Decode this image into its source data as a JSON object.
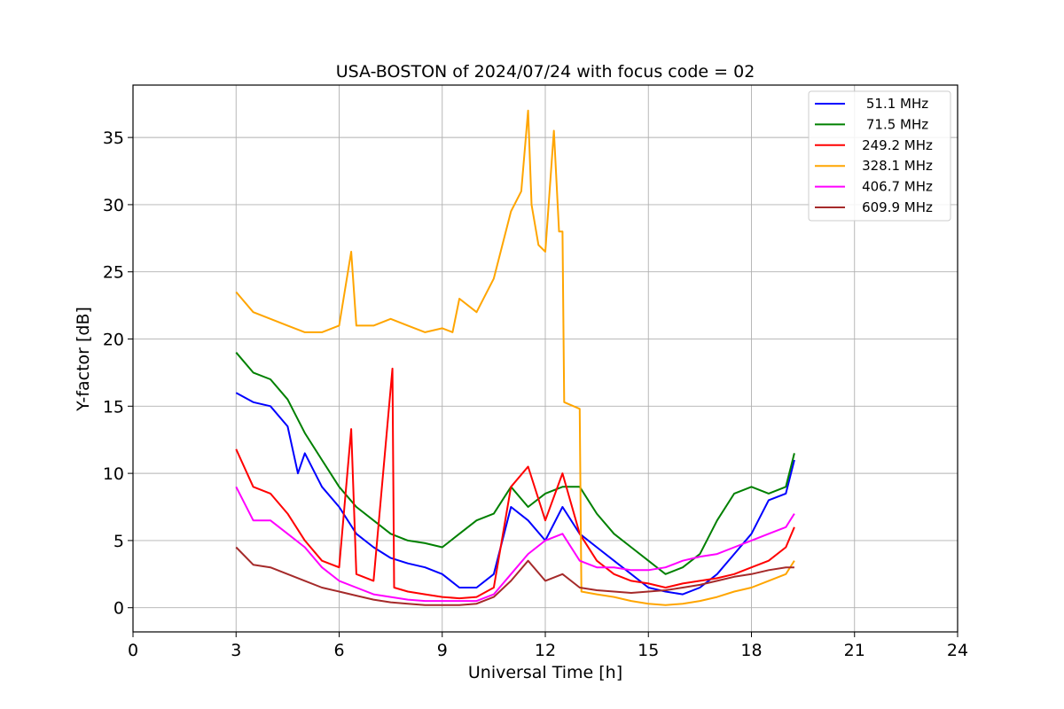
{
  "chart_data": {
    "type": "line",
    "title": "USA-BOSTON of 2024/07/24 with focus code = 02",
    "xlabel": "Universal Time [h]",
    "ylabel": "Y-factor [dB]",
    "xlim": [
      0,
      24
    ],
    "ylim": [
      -1.8,
      38.9
    ],
    "xticks": [
      "0",
      "3",
      "6",
      "9",
      "12",
      "15",
      "18",
      "21",
      "24"
    ],
    "yticks": [
      "0",
      "5",
      "10",
      "15",
      "20",
      "25",
      "30",
      "35"
    ],
    "grid": true,
    "legend_position": "top-right",
    "series": [
      {
        "name": "51.1 MHz",
        "color": "#0000ff",
        "x": [
          3.0,
          3.5,
          4.0,
          4.5,
          4.8,
          5.0,
          5.5,
          6.0,
          6.5,
          7.0,
          7.5,
          8.0,
          8.5,
          9.0,
          9.5,
          10.0,
          10.5,
          11.0,
          11.5,
          12.0,
          12.5,
          13.0,
          13.5,
          14.0,
          14.5,
          15.0,
          15.5,
          16.0,
          16.5,
          17.0,
          17.5,
          18.0,
          18.5,
          19.0,
          19.25
        ],
        "y": [
          16.0,
          15.3,
          15.0,
          13.5,
          10.0,
          11.5,
          9.0,
          7.5,
          5.5,
          4.5,
          3.7,
          3.3,
          3.0,
          2.5,
          1.5,
          1.5,
          2.5,
          7.5,
          6.5,
          5.0,
          7.5,
          5.5,
          4.5,
          3.5,
          2.5,
          1.5,
          1.2,
          1.0,
          1.5,
          2.5,
          4.0,
          5.5,
          8.0,
          8.5,
          11.0
        ]
      },
      {
        "name": "71.5 MHz",
        "color": "#008000",
        "x": [
          3.0,
          3.5,
          4.0,
          4.5,
          5.0,
          5.5,
          6.0,
          6.5,
          7.0,
          7.5,
          8.0,
          8.5,
          9.0,
          9.5,
          10.0,
          10.5,
          11.0,
          11.5,
          12.0,
          12.5,
          13.0,
          13.5,
          14.0,
          14.5,
          15.0,
          15.5,
          16.0,
          16.5,
          17.0,
          17.5,
          18.0,
          18.5,
          19.0,
          19.25
        ],
        "y": [
          19.0,
          17.5,
          17.0,
          15.5,
          13.0,
          11.0,
          9.0,
          7.5,
          6.5,
          5.5,
          5.0,
          4.8,
          4.5,
          5.5,
          6.5,
          7.0,
          9.0,
          7.5,
          8.5,
          9.0,
          9.0,
          7.0,
          5.5,
          4.5,
          3.5,
          2.5,
          3.0,
          4.0,
          6.5,
          8.5,
          9.0,
          8.5,
          9.0,
          11.5
        ]
      },
      {
        "name": "249.2 MHz",
        "color": "#ff0000",
        "x": [
          3.0,
          3.5,
          4.0,
          4.5,
          5.0,
          5.5,
          6.0,
          6.35,
          6.5,
          7.0,
          7.55,
          7.6,
          8.0,
          8.5,
          9.0,
          9.5,
          10.0,
          10.5,
          11.0,
          11.5,
          12.0,
          12.5,
          13.0,
          13.5,
          14.0,
          14.5,
          15.0,
          15.5,
          16.0,
          16.5,
          17.0,
          17.5,
          18.0,
          18.5,
          19.0,
          19.25
        ],
        "y": [
          11.8,
          9.0,
          8.5,
          7.0,
          5.0,
          3.5,
          3.0,
          13.3,
          2.5,
          2.0,
          17.8,
          1.5,
          1.2,
          1.0,
          0.8,
          0.7,
          0.8,
          1.5,
          9.0,
          10.5,
          6.5,
          10.0,
          5.5,
          3.5,
          2.5,
          2.0,
          1.8,
          1.5,
          1.8,
          2.0,
          2.2,
          2.5,
          3.0,
          3.5,
          4.5,
          6.0
        ]
      },
      {
        "name": "328.1 MHz",
        "color": "#ffa500",
        "x": [
          3.0,
          3.5,
          4.0,
          4.5,
          5.0,
          5.5,
          6.0,
          6.35,
          6.5,
          7.0,
          7.5,
          8.0,
          8.5,
          9.0,
          9.3,
          9.5,
          10.0,
          10.5,
          11.0,
          11.3,
          11.5,
          11.6,
          11.8,
          12.0,
          12.25,
          12.4,
          12.5,
          12.55,
          13.0,
          13.05,
          13.5,
          14.0,
          14.5,
          15.0,
          15.5,
          16.0,
          16.5,
          17.0,
          17.5,
          18.0,
          18.5,
          19.0,
          19.25
        ],
        "y": [
          23.5,
          22.0,
          21.5,
          21.0,
          20.5,
          20.5,
          21.0,
          26.5,
          21.0,
          21.0,
          21.5,
          21.0,
          20.5,
          20.8,
          20.5,
          23.0,
          22.0,
          24.5,
          29.5,
          31.0,
          37.0,
          30.0,
          27.0,
          26.5,
          35.5,
          28.0,
          28.0,
          15.3,
          14.8,
          1.2,
          1.0,
          0.8,
          0.5,
          0.3,
          0.2,
          0.3,
          0.5,
          0.8,
          1.2,
          1.5,
          2.0,
          2.5,
          3.5
        ]
      },
      {
        "name": "406.7 MHz",
        "color": "#ff00ff",
        "x": [
          3.0,
          3.5,
          4.0,
          4.5,
          5.0,
          5.5,
          6.0,
          6.5,
          7.0,
          7.5,
          8.0,
          8.5,
          9.0,
          9.5,
          10.0,
          10.5,
          11.0,
          11.5,
          12.0,
          12.5,
          13.0,
          13.5,
          14.0,
          14.5,
          15.0,
          15.5,
          16.0,
          16.5,
          17.0,
          17.5,
          18.0,
          18.5,
          19.0,
          19.25
        ],
        "y": [
          9.0,
          6.5,
          6.5,
          5.5,
          4.5,
          3.0,
          2.0,
          1.5,
          1.0,
          0.8,
          0.6,
          0.5,
          0.5,
          0.5,
          0.5,
          1.0,
          2.5,
          4.0,
          5.0,
          5.5,
          3.5,
          3.0,
          3.0,
          2.8,
          2.8,
          3.0,
          3.5,
          3.8,
          4.0,
          4.5,
          5.0,
          5.5,
          6.0,
          7.0
        ]
      },
      {
        "name": "609.9 MHz",
        "color": "#a52a2a",
        "x": [
          3.0,
          3.5,
          4.0,
          4.5,
          5.0,
          5.5,
          6.0,
          6.5,
          7.0,
          7.5,
          8.0,
          8.5,
          9.0,
          9.5,
          10.0,
          10.5,
          11.0,
          11.5,
          12.0,
          12.5,
          13.0,
          13.5,
          14.0,
          14.5,
          15.0,
          15.5,
          16.0,
          16.5,
          17.0,
          17.5,
          18.0,
          18.5,
          19.0,
          19.25
        ],
        "y": [
          4.5,
          3.2,
          3.0,
          2.5,
          2.0,
          1.5,
          1.2,
          0.9,
          0.6,
          0.4,
          0.3,
          0.2,
          0.2,
          0.2,
          0.3,
          0.8,
          2.0,
          3.5,
          2.0,
          2.5,
          1.5,
          1.3,
          1.2,
          1.1,
          1.2,
          1.3,
          1.5,
          1.7,
          2.0,
          2.3,
          2.5,
          2.8,
          3.0,
          3.0
        ]
      }
    ]
  }
}
